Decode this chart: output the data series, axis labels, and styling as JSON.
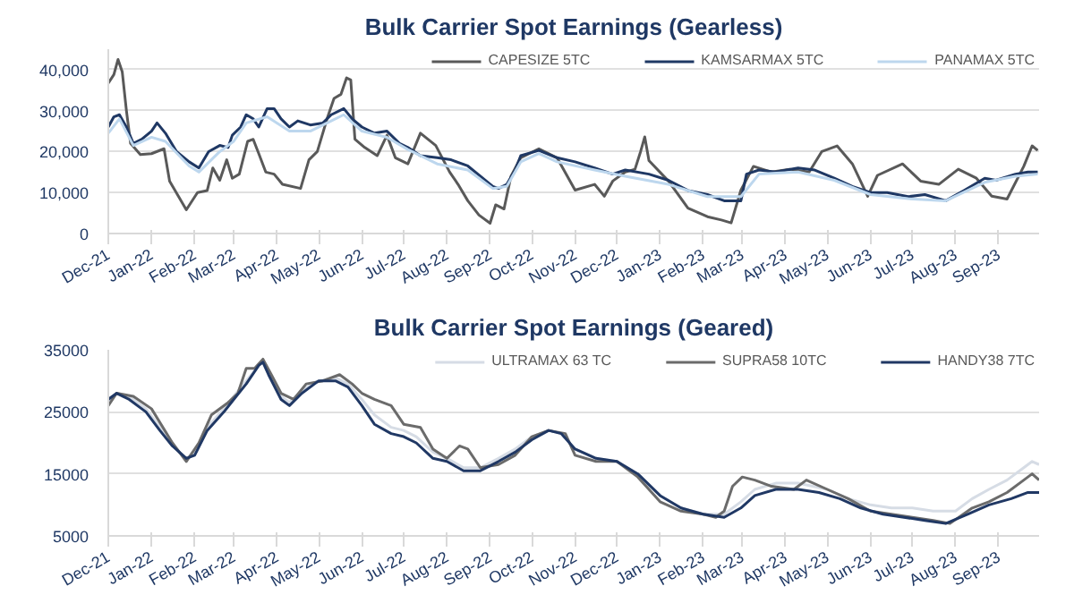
{
  "chart_data": [
    {
      "type": "line",
      "title": "Bulk Carrier Spot Earnings (Gearless)",
      "xlim": [
        "2021-12-01",
        "2023-09-30"
      ],
      "xticks": [
        {
          "value": "2021-12-01",
          "label": "Dec-21"
        },
        {
          "value": "2022-01-01",
          "label": "Jan-22"
        },
        {
          "value": "2022-02-01",
          "label": "Feb-22"
        },
        {
          "value": "2022-03-01",
          "label": "Mar-22"
        },
        {
          "value": "2022-04-01",
          "label": "Apr-22"
        },
        {
          "value": "2022-05-01",
          "label": "May-22"
        },
        {
          "value": "2022-06-01",
          "label": "Jun-22"
        },
        {
          "value": "2022-07-01",
          "label": "Jul-22"
        },
        {
          "value": "2022-08-01",
          "label": "Aug-22"
        },
        {
          "value": "2022-09-01",
          "label": "Sep-22"
        },
        {
          "value": "2022-10-01",
          "label": "Oct-22"
        },
        {
          "value": "2022-11-01",
          "label": "Nov-22"
        },
        {
          "value": "2022-12-01",
          "label": "Dec-22"
        },
        {
          "value": "2023-01-01",
          "label": "Jan-23"
        },
        {
          "value": "2023-02-01",
          "label": "Feb-23"
        },
        {
          "value": "2023-03-01",
          "label": "Mar-23"
        },
        {
          "value": "2023-04-01",
          "label": "Apr-23"
        },
        {
          "value": "2023-05-01",
          "label": "May-23"
        },
        {
          "value": "2023-06-01",
          "label": "Jun-23"
        },
        {
          "value": "2023-07-01",
          "label": "Jul-23"
        },
        {
          "value": "2023-08-01",
          "label": "Aug-23"
        },
        {
          "value": "2023-09-01",
          "label": "Sep-23"
        }
      ],
      "ylim": [
        0,
        45000
      ],
      "yticks": [
        {
          "value": 0,
          "label": "0"
        },
        {
          "value": 10000,
          "label": "10,000"
        },
        {
          "value": 20000,
          "label": "20,000"
        },
        {
          "value": 30000,
          "label": "30,000"
        },
        {
          "value": 40000,
          "label": "40,000"
        }
      ],
      "grid": "y",
      "legend": "top right",
      "line_style": "solid",
      "marker": "none",
      "series": [
        {
          "name": "CAPESIZE 5TC",
          "color": "#595959",
          "x": [
            "2021-12-01",
            "2021-12-05",
            "2021-12-08",
            "2021-12-11",
            "2021-12-14",
            "2021-12-17",
            "2021-12-24",
            "2022-01-01",
            "2022-01-10",
            "2022-01-14",
            "2022-01-26",
            "2022-02-03",
            "2022-02-10",
            "2022-02-14",
            "2022-02-19",
            "2022-02-24",
            "2022-02-28",
            "2022-03-05",
            "2022-03-11",
            "2022-03-15",
            "2022-03-19",
            "2022-03-24",
            "2022-03-30",
            "2022-04-05",
            "2022-04-18",
            "2022-04-24",
            "2022-04-30",
            "2022-05-07",
            "2022-05-12",
            "2022-05-17",
            "2022-05-21",
            "2022-05-24",
            "2022-05-27",
            "2022-06-03",
            "2022-06-12",
            "2022-06-19",
            "2022-06-25",
            "2022-07-04",
            "2022-07-13",
            "2022-07-24",
            "2022-08-03",
            "2022-08-09",
            "2022-08-16",
            "2022-08-24",
            "2022-09-01",
            "2022-09-05",
            "2022-09-11",
            "2022-09-16",
            "2022-09-23",
            "2022-10-06",
            "2022-10-19",
            "2022-11-01",
            "2022-11-15",
            "2022-11-22",
            "2022-11-28",
            "2022-12-07",
            "2022-12-14",
            "2022-12-18",
            "2022-12-21",
            "2022-12-24",
            "2023-01-07",
            "2023-01-21",
            "2023-02-04",
            "2023-02-14",
            "2023-02-21",
            "2023-02-28",
            "2023-03-09",
            "2023-03-22",
            "2023-04-04",
            "2023-04-18",
            "2023-04-27",
            "2023-05-08",
            "2023-05-19",
            "2023-05-30",
            "2023-06-06",
            "2023-06-24",
            "2023-07-07",
            "2023-07-20",
            "2023-08-03",
            "2023-08-16",
            "2023-08-27",
            "2023-09-07",
            "2023-09-19",
            "2023-09-25",
            "2023-09-29"
          ],
          "values": [
            36700,
            38800,
            42500,
            39500,
            30000,
            22000,
            19300,
            19500,
            20700,
            12800,
            5800,
            10000,
            10500,
            16000,
            13000,
            18000,
            13500,
            14500,
            22500,
            23000,
            19500,
            15000,
            14500,
            12000,
            11000,
            18000,
            20000,
            28000,
            33000,
            34000,
            38000,
            37500,
            23000,
            21000,
            19000,
            24000,
            18500,
            17000,
            24500,
            21500,
            15000,
            12000,
            8000,
            4500,
            2500,
            7000,
            6000,
            14000,
            18500,
            20700,
            18500,
            10600,
            12000,
            9100,
            12800,
            15000,
            15700,
            20000,
            23600,
            17800,
            12800,
            6200,
            4100,
            3300,
            2600,
            10600,
            16400,
            15000,
            15700,
            15000,
            20000,
            21400,
            17000,
            9100,
            14200,
            17000,
            12800,
            12000,
            15700,
            13500,
            9100,
            8400,
            16400,
            21400,
            20300
          ]
        },
        {
          "name": "KAMSARMAX 5TC",
          "color": "#1f3864",
          "x": [
            "2021-12-01",
            "2021-12-05",
            "2021-12-09",
            "2021-12-14",
            "2021-12-19",
            "2021-12-25",
            "2022-01-01",
            "2022-01-05",
            "2022-01-11",
            "2022-01-19",
            "2022-01-28",
            "2022-02-04",
            "2022-02-11",
            "2022-02-19",
            "2022-02-25",
            "2022-02-28",
            "2022-03-06",
            "2022-03-10",
            "2022-03-15",
            "2022-03-19",
            "2022-03-25",
            "2022-03-30",
            "2022-04-04",
            "2022-04-10",
            "2022-04-16",
            "2022-04-25",
            "2022-05-04",
            "2022-05-10",
            "2022-05-19",
            "2022-05-25",
            "2022-06-01",
            "2022-06-10",
            "2022-06-19",
            "2022-06-28",
            "2022-07-04",
            "2022-07-13",
            "2022-07-25",
            "2022-08-04",
            "2022-08-16",
            "2022-08-25",
            "2022-09-03",
            "2022-09-07",
            "2022-09-13",
            "2022-09-19",
            "2022-09-23",
            "2022-10-06",
            "2022-10-19",
            "2022-11-01",
            "2022-11-15",
            "2022-11-28",
            "2022-12-07",
            "2022-12-24",
            "2023-01-07",
            "2023-01-21",
            "2023-02-04",
            "2023-02-16",
            "2023-02-28",
            "2023-03-04",
            "2023-03-13",
            "2023-03-25",
            "2023-04-10",
            "2023-04-22",
            "2023-05-06",
            "2023-05-19",
            "2023-06-01",
            "2023-06-13",
            "2023-06-28",
            "2023-07-10",
            "2023-07-25",
            "2023-08-07",
            "2023-08-22",
            "2023-08-30",
            "2023-09-13",
            "2023-09-22",
            "2023-09-29"
          ],
          "values": [
            26000,
            28500,
            29000,
            26000,
            22000,
            23000,
            25000,
            27000,
            24500,
            20000,
            17500,
            16000,
            20000,
            21500,
            21000,
            24000,
            26000,
            29000,
            28000,
            26000,
            30500,
            30500,
            28000,
            26000,
            27500,
            26500,
            27000,
            29000,
            30500,
            28000,
            26000,
            24500,
            25000,
            22000,
            21000,
            19000,
            18500,
            18000,
            16500,
            14000,
            11500,
            11000,
            12000,
            15500,
            19000,
            20300,
            18500,
            17500,
            16000,
            14500,
            15500,
            14500,
            13000,
            10500,
            9500,
            8000,
            8000,
            14500,
            15500,
            15000,
            16000,
            15500,
            13500,
            11500,
            10000,
            10000,
            9000,
            9500,
            8000,
            10500,
            13500,
            13000,
            14500,
            15000,
            15000
          ]
        },
        {
          "name": "PANAMAX 5TC",
          "color": "#bdd7ee",
          "x": [
            "2021-12-01",
            "2021-12-09",
            "2021-12-19",
            "2022-01-01",
            "2022-01-11",
            "2022-01-28",
            "2022-02-04",
            "2022-02-19",
            "2022-03-01",
            "2022-03-10",
            "2022-03-25",
            "2022-04-10",
            "2022-04-25",
            "2022-05-10",
            "2022-05-19",
            "2022-06-01",
            "2022-06-19",
            "2022-07-04",
            "2022-07-25",
            "2022-08-16",
            "2022-09-03",
            "2022-09-13",
            "2022-09-23",
            "2022-10-06",
            "2022-10-19",
            "2022-11-15",
            "2022-12-07",
            "2023-01-07",
            "2023-02-04",
            "2023-02-28",
            "2023-03-13",
            "2023-04-10",
            "2023-05-06",
            "2023-06-01",
            "2023-06-28",
            "2023-07-25",
            "2023-08-22",
            "2023-09-13",
            "2023-09-29"
          ],
          "values": [
            24500,
            28000,
            21500,
            23500,
            22500,
            16500,
            15000,
            20000,
            22500,
            27000,
            28500,
            25000,
            25000,
            27500,
            29000,
            25000,
            23500,
            20500,
            17000,
            15500,
            11000,
            11500,
            17500,
            19500,
            17500,
            15500,
            14000,
            12000,
            9000,
            9000,
            14500,
            15000,
            13000,
            9500,
            8500,
            8000,
            12500,
            14000,
            14500
          ]
        }
      ]
    },
    {
      "type": "line",
      "title": "Bulk Carrier Spot Earnings (Geared)",
      "xlim": [
        "2021-12-01",
        "2023-09-30"
      ],
      "xticks": [
        {
          "value": "2021-12-01",
          "label": "Dec-21"
        },
        {
          "value": "2022-01-01",
          "label": "Jan-22"
        },
        {
          "value": "2022-02-01",
          "label": "Feb-22"
        },
        {
          "value": "2022-03-01",
          "label": "Mar-22"
        },
        {
          "value": "2022-04-01",
          "label": "Apr-22"
        },
        {
          "value": "2022-05-01",
          "label": "May-22"
        },
        {
          "value": "2022-06-01",
          "label": "Jun-22"
        },
        {
          "value": "2022-07-01",
          "label": "Jul-22"
        },
        {
          "value": "2022-08-01",
          "label": "Aug-22"
        },
        {
          "value": "2022-09-01",
          "label": "Sep-22"
        },
        {
          "value": "2022-10-01",
          "label": "Oct-22"
        },
        {
          "value": "2022-11-01",
          "label": "Nov-22"
        },
        {
          "value": "2022-12-01",
          "label": "Dec-22"
        },
        {
          "value": "2023-01-01",
          "label": "Jan-23"
        },
        {
          "value": "2023-02-01",
          "label": "Feb-23"
        },
        {
          "value": "2023-03-01",
          "label": "Mar-23"
        },
        {
          "value": "2023-04-01",
          "label": "Apr-23"
        },
        {
          "value": "2023-05-01",
          "label": "May-23"
        },
        {
          "value": "2023-06-01",
          "label": "Jun-23"
        },
        {
          "value": "2023-07-01",
          "label": "Jul-23"
        },
        {
          "value": "2023-08-01",
          "label": "Aug-23"
        },
        {
          "value": "2023-09-01",
          "label": "Sep-23"
        }
      ],
      "ylim": [
        5000,
        35000
      ],
      "yticks": [
        5000,
        15000,
        25000,
        35000
      ],
      "grid": "y",
      "legend": "top right",
      "line_style": "solid",
      "marker": "none",
      "series": [
        {
          "name": "ULTRAMAX 63 TC",
          "color": "#d6dce5",
          "x": [
            "2021-12-01",
            "2021-12-07",
            "2021-12-16",
            "2021-12-28",
            "2022-01-07",
            "2022-01-16",
            "2022-01-26",
            "2022-02-01",
            "2022-02-10",
            "2022-02-22",
            "2022-03-01",
            "2022-03-10",
            "2022-03-19",
            "2022-03-22",
            "2022-03-26",
            "2022-04-04",
            "2022-04-10",
            "2022-04-19",
            "2022-05-01",
            "2022-05-13",
            "2022-05-22",
            "2022-06-01",
            "2022-06-10",
            "2022-06-22",
            "2022-07-01",
            "2022-07-10",
            "2022-07-22",
            "2022-08-01",
            "2022-08-13",
            "2022-08-25",
            "2022-09-07",
            "2022-09-19",
            "2022-10-01",
            "2022-10-13",
            "2022-10-22",
            "2022-11-01",
            "2022-11-16",
            "2022-12-01",
            "2022-12-16",
            "2023-01-01",
            "2023-01-16",
            "2023-02-01",
            "2023-02-16",
            "2023-02-28",
            "2023-03-10",
            "2023-03-25",
            "2023-04-10",
            "2023-05-01",
            "2023-05-16",
            "2023-06-01",
            "2023-06-16",
            "2023-07-01",
            "2023-07-16",
            "2023-08-01",
            "2023-08-13",
            "2023-08-25",
            "2023-09-07",
            "2023-09-19",
            "2023-09-25",
            "2023-09-30"
          ],
          "values": [
            26500,
            28000,
            27500,
            25500,
            22500,
            19500,
            17500,
            18500,
            22500,
            25500,
            27500,
            30000,
            32500,
            33000,
            31000,
            27500,
            26500,
            28500,
            30000,
            30500,
            29500,
            27000,
            24500,
            22500,
            22000,
            21000,
            18500,
            17500,
            16000,
            16000,
            17500,
            19000,
            21000,
            22000,
            21500,
            19000,
            17500,
            17000,
            15000,
            11500,
            9500,
            8500,
            8500,
            10500,
            12500,
            13500,
            13500,
            12500,
            11000,
            10000,
            9500,
            9500,
            9000,
            9000,
            11000,
            12500,
            14000,
            16000,
            17000,
            16500
          ]
        },
        {
          "name": "SUPRA58 10TC",
          "color": "#6b6b6b",
          "x": [
            "2021-12-01",
            "2021-12-07",
            "2021-12-19",
            "2022-01-01",
            "2022-01-16",
            "2022-01-26",
            "2022-02-04",
            "2022-02-13",
            "2022-02-25",
            "2022-03-04",
            "2022-03-10",
            "2022-03-16",
            "2022-03-22",
            "2022-03-28",
            "2022-04-04",
            "2022-04-13",
            "2022-04-22",
            "2022-05-04",
            "2022-05-16",
            "2022-05-25",
            "2022-06-01",
            "2022-06-10",
            "2022-06-22",
            "2022-07-01",
            "2022-07-13",
            "2022-07-22",
            "2022-08-01",
            "2022-08-10",
            "2022-08-16",
            "2022-08-25",
            "2022-09-07",
            "2022-09-19",
            "2022-10-01",
            "2022-10-13",
            "2022-10-25",
            "2022-11-01",
            "2022-11-16",
            "2022-12-01",
            "2022-12-16",
            "2023-01-01",
            "2023-01-16",
            "2023-02-01",
            "2023-02-10",
            "2023-02-16",
            "2023-02-22",
            "2023-03-01",
            "2023-03-10",
            "2023-03-22",
            "2023-04-07",
            "2023-04-16",
            "2023-05-01",
            "2023-05-16",
            "2023-06-01",
            "2023-06-16",
            "2023-07-01",
            "2023-07-16",
            "2023-07-28",
            "2023-08-13",
            "2023-08-25",
            "2023-09-07",
            "2023-09-19",
            "2023-09-25",
            "2023-09-30"
          ],
          "values": [
            26000,
            28000,
            27500,
            25500,
            20000,
            17000,
            20000,
            24500,
            26500,
            28000,
            32000,
            32000,
            33500,
            31000,
            28000,
            27000,
            29500,
            30000,
            31000,
            29500,
            28000,
            27000,
            26000,
            23000,
            22500,
            19000,
            17500,
            19500,
            19000,
            16000,
            16500,
            18000,
            21000,
            22000,
            21500,
            18000,
            17000,
            17000,
            14500,
            10500,
            9000,
            8500,
            8000,
            9000,
            13000,
            14500,
            14000,
            13000,
            12500,
            14000,
            12500,
            11000,
            9000,
            8500,
            8000,
            7500,
            7000,
            9500,
            10500,
            12000,
            14000,
            15000,
            14000
          ]
        },
        {
          "name": "HANDY38 7TC",
          "color": "#203864",
          "x": [
            "2021-12-01",
            "2021-12-07",
            "2021-12-16",
            "2021-12-28",
            "2022-01-07",
            "2022-01-16",
            "2022-01-26",
            "2022-02-01",
            "2022-02-10",
            "2022-02-22",
            "2022-03-01",
            "2022-03-10",
            "2022-03-19",
            "2022-03-22",
            "2022-03-26",
            "2022-04-04",
            "2022-04-10",
            "2022-04-19",
            "2022-05-01",
            "2022-05-13",
            "2022-05-22",
            "2022-06-01",
            "2022-06-10",
            "2022-06-22",
            "2022-07-01",
            "2022-07-10",
            "2022-07-22",
            "2022-08-01",
            "2022-08-13",
            "2022-08-25",
            "2022-09-07",
            "2022-09-19",
            "2022-10-01",
            "2022-10-13",
            "2022-10-22",
            "2022-11-01",
            "2022-11-16",
            "2022-12-01",
            "2022-12-16",
            "2023-01-01",
            "2023-01-16",
            "2023-02-01",
            "2023-02-16",
            "2023-02-28",
            "2023-03-10",
            "2023-03-25",
            "2023-04-10",
            "2023-04-25",
            "2023-05-10",
            "2023-05-25",
            "2023-06-10",
            "2023-06-25",
            "2023-07-10",
            "2023-07-25",
            "2023-08-10",
            "2023-08-25",
            "2023-09-10",
            "2023-09-22",
            "2023-09-30"
          ],
          "values": [
            27000,
            28000,
            27000,
            25000,
            22000,
            19500,
            17500,
            18000,
            22000,
            25000,
            27000,
            29500,
            32500,
            33000,
            31000,
            27000,
            26000,
            28000,
            30000,
            30000,
            29000,
            26000,
            23000,
            21500,
            21000,
            20000,
            17500,
            17000,
            15500,
            15500,
            17000,
            18500,
            20500,
            22000,
            21500,
            19000,
            17500,
            17000,
            15000,
            11500,
            9500,
            8500,
            8000,
            9500,
            11500,
            12500,
            12500,
            12000,
            11000,
            9500,
            8500,
            8000,
            7500,
            7000,
            8500,
            10000,
            11000,
            12000,
            12000
          ]
        }
      ]
    }
  ]
}
